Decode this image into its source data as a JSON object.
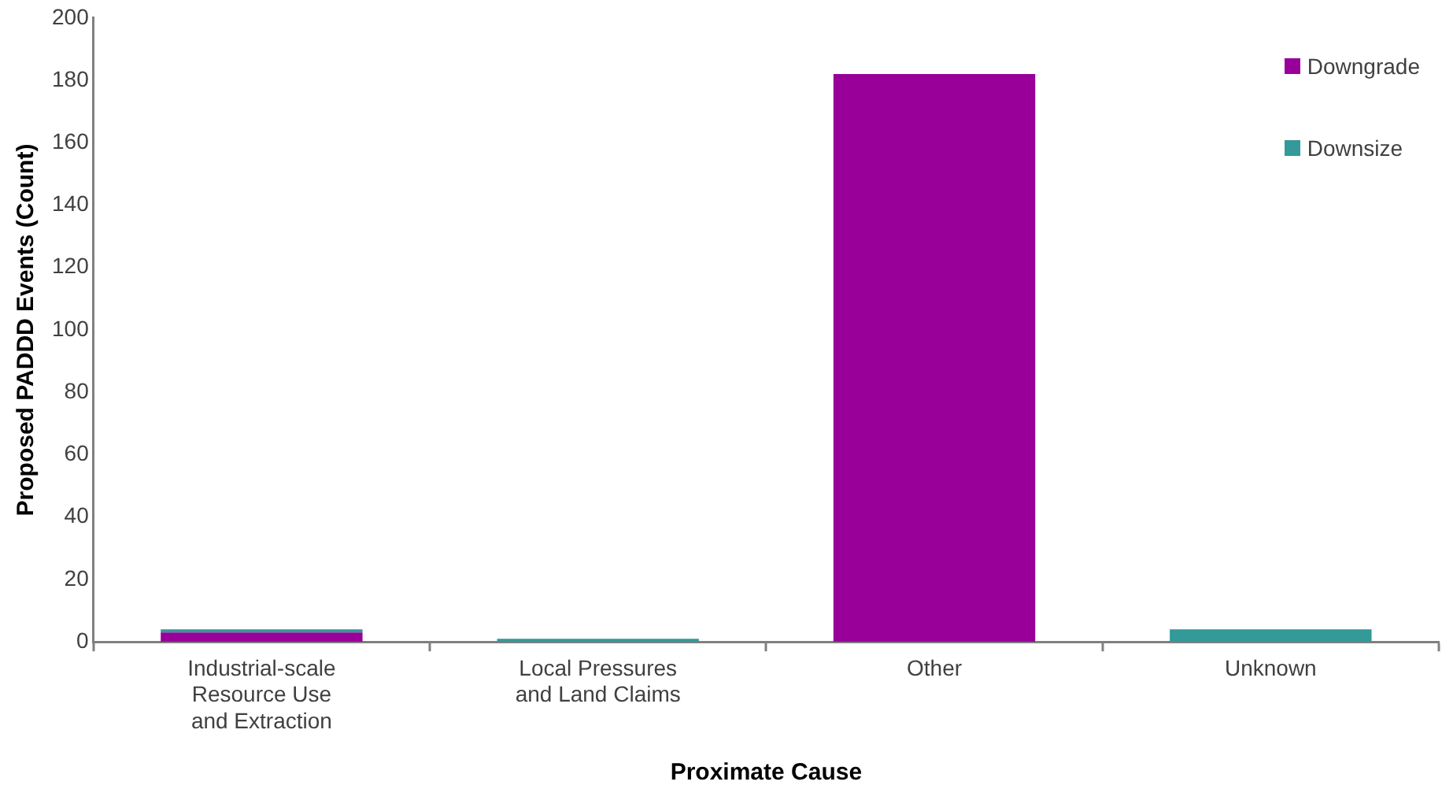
{
  "chart_data": {
    "type": "bar",
    "stacked": true,
    "xlabel": "Proximate Cause",
    "ylabel": "Proposed PADDD Events (Count)",
    "categories": [
      "Industrial-scale\nResource Use\nand Extraction",
      "Local Pressures\nand Land Claims",
      "Other",
      "Unknown"
    ],
    "series": [
      {
        "name": "Downgrade",
        "color": "#990099",
        "values": [
          3,
          0,
          182,
          0
        ]
      },
      {
        "name": "Downsize",
        "color": "#339999",
        "values": [
          1,
          1,
          0,
          4
        ]
      }
    ],
    "ylim": [
      0,
      200
    ],
    "yticks": [
      0,
      20,
      40,
      60,
      80,
      100,
      120,
      140,
      160,
      180,
      200
    ],
    "grid": false,
    "legend": "top right"
  }
}
